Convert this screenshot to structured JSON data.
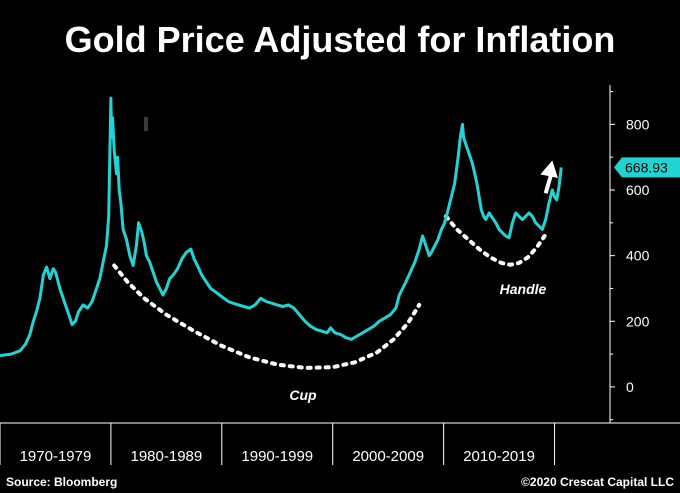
{
  "chart_data": {
    "type": "line",
    "title": "Gold Price Adjusted for Inflation",
    "ylim": [
      -110,
      920
    ],
    "xlim": [
      1970,
      2025
    ],
    "yticks": [
      0,
      200,
      400,
      600,
      800
    ],
    "categories": [
      "1970-1979",
      "1980-1989",
      "1990-1999",
      "2000-2009",
      "2010-2019"
    ],
    "category_bounds": [
      1970,
      1980,
      1990,
      2000,
      2010,
      2020
    ],
    "last_value_label": "668.93",
    "annotations": {
      "cup": "Cup",
      "handle": "Handle"
    },
    "source": "Source: Bloomberg",
    "copyright": "©2020 Crescat Capital LLC",
    "grid": false,
    "series": [
      {
        "color": "#21d4d4",
        "x": [
          1970.0,
          1971.0,
          1971.8,
          1972.3,
          1972.7,
          1973.0,
          1973.3,
          1973.6,
          1973.9,
          1974.2,
          1974.5,
          1974.8,
          1975.0,
          1975.4,
          1975.8,
          1976.2,
          1976.5,
          1976.8,
          1977.1,
          1977.5,
          1977.9,
          1978.3,
          1978.7,
          1979.0,
          1979.3,
          1979.6,
          1979.8,
          1980.0,
          1980.05,
          1980.15,
          1980.3,
          1980.5,
          1980.6,
          1980.75,
          1980.9,
          1981.1,
          1981.4,
          1981.7,
          1982.0,
          1982.3,
          1982.5,
          1982.8,
          1983.0,
          1983.2,
          1983.5,
          1983.8,
          1984.1,
          1984.4,
          1984.7,
          1985.0,
          1985.3,
          1985.6,
          1986.0,
          1986.4,
          1986.8,
          1987.2,
          1987.5,
          1987.8,
          1988.2,
          1988.6,
          1989.0,
          1989.4,
          1989.8,
          1990.2,
          1990.6,
          1991.0,
          1991.5,
          1992.0,
          1992.5,
          1993.0,
          1993.5,
          1994.0,
          1994.5,
          1995.0,
          1995.5,
          1996.0,
          1996.5,
          1997.0,
          1997.5,
          1998.0,
          1998.5,
          1999.0,
          1999.5,
          1999.8,
          2000.2,
          2000.7,
          2001.2,
          2001.7,
          2002.2,
          2002.7,
          2003.2,
          2003.7,
          2004.2,
          2004.7,
          2005.2,
          2005.7,
          2006.0,
          2006.3,
          2006.6,
          2007.0,
          2007.4,
          2007.8,
          2008.1,
          2008.4,
          2008.7,
          2008.9,
          2009.2,
          2009.5,
          2009.8,
          2010.1,
          2010.4,
          2010.7,
          2011.0,
          2011.3,
          2011.5,
          2011.7,
          2011.8,
          2012.0,
          2012.2,
          2012.4,
          2012.6,
          2012.8,
          2013.0,
          2013.2,
          2013.4,
          2013.6,
          2013.8,
          2014.1,
          2014.4,
          2014.7,
          2015.0,
          2015.3,
          2015.6,
          2015.9,
          2016.2,
          2016.5,
          2016.8,
          2017.1,
          2017.4,
          2017.7,
          2018.0,
          2018.3,
          2018.6,
          2018.9,
          2019.2,
          2019.5,
          2019.8,
          2020.0,
          2020.2,
          2020.4,
          2020.6
        ],
        "y": [
          95,
          100,
          110,
          130,
          160,
          200,
          230,
          270,
          340,
          365,
          330,
          360,
          350,
          300,
          260,
          220,
          190,
          200,
          230,
          250,
          240,
          260,
          300,
          330,
          380,
          430,
          520,
          880,
          760,
          820,
          720,
          650,
          700,
          600,
          560,
          480,
          450,
          400,
          370,
          430,
          500,
          470,
          440,
          400,
          380,
          350,
          320,
          300,
          280,
          300,
          330,
          340,
          360,
          390,
          410,
          420,
          390,
          370,
          340,
          320,
          300,
          290,
          280,
          270,
          260,
          255,
          250,
          245,
          240,
          250,
          270,
          260,
          255,
          250,
          245,
          250,
          240,
          220,
          200,
          185,
          175,
          170,
          165,
          180,
          165,
          160,
          150,
          145,
          155,
          165,
          175,
          185,
          200,
          210,
          220,
          240,
          280,
          300,
          320,
          350,
          380,
          420,
          460,
          430,
          400,
          410,
          430,
          450,
          480,
          500,
          540,
          580,
          620,
          700,
          760,
          800,
          760,
          740,
          720,
          700,
          680,
          650,
          620,
          580,
          540,
          520,
          510,
          530,
          515,
          500,
          480,
          470,
          460,
          455,
          500,
          530,
          520,
          510,
          520,
          530,
          520,
          500,
          490,
          480,
          510,
          560,
          600,
          580,
          570,
          610,
          669
        ]
      }
    ],
    "curves": [
      {
        "name": "cup",
        "x": [
          1980.3,
          1981.5,
          1983.0,
          1985.0,
          1987.5,
          1990.0,
          1992.5,
          1995.0,
          1997.5,
          2000.0,
          2002.0,
          2004.0,
          2005.5,
          2006.8,
          2007.8
        ],
        "y": [
          370,
          320,
          270,
          220,
          170,
          125,
          90,
          68,
          58,
          60,
          75,
          105,
          145,
          195,
          250
        ]
      },
      {
        "name": "handle",
        "x": [
          2010.2,
          2011.2,
          2012.2,
          2013.2,
          2014.2,
          2015.2,
          2016.0,
          2016.8,
          2017.6,
          2018.4,
          2019.1
        ],
        "y": [
          520,
          480,
          450,
          420,
          395,
          378,
          372,
          378,
          395,
          425,
          460
        ]
      },
      {
        "name": "arrow",
        "x": [
          2019.2,
          2019.8
        ],
        "y": [
          590,
          690
        ]
      }
    ]
  }
}
